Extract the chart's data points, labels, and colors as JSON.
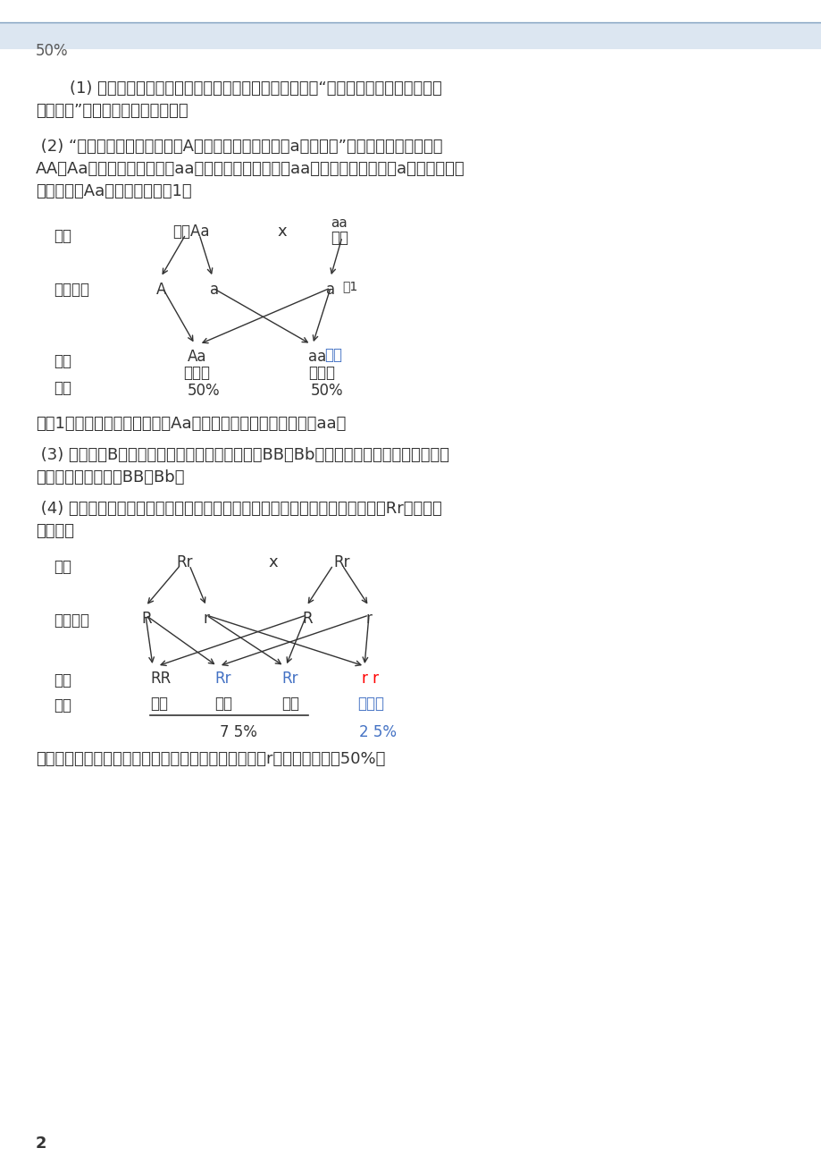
{
  "bg_color": "#ffffff",
  "highlight_color": "#dce6f1",
  "text_color": "#595959",
  "blue_color": "#4472c4",
  "red_color": "#ff0000",
  "page_number": "2",
  "header_text": "50%",
  "p1_l1": "    (1) 生物体的形态特征、生理特征和行为方式叫做性状，“人的眼睛、酒窝、惯用左右",
  "p1_l2": "手、肤色”在生物学上统称为性状。",
  "p2_l1": " (2) “假设控制双眼皮的基因（A）相对于单眼皮基因（a）为显性”，则双眼皮的基因型是",
  "p2_l2": "AA或Aa，单眼皮的基因型是aa。父亲遗传给单眼皮（aa）小明的基因一定是a，因此父亲的",
  "p2_l3": "基因组成为Aa，遗传图解如图1：",
  "p3": "从图1看出，父亲的基因组成是Aa；儿子（小明）的基因组成为aa。",
  "p4_l1": " (3) 显性基因B控制惯用右手的性状，基因组成为BB和Bb的个体表现型为惯用右手，故小",
  "p4_l2": "明父亲的基因组成为BB或Bb。",
  "p5_l1": " (4) 正常亲代生出有白化病的子代，说明亲代均为白化病基因携带者，基因型为Rr，遗传图",
  "p5_l2": "解如下：",
  "p6": "由图可知该夫妇生一个表现正常但含有白化病隐性基因r的孩子的概率是50%。",
  "lbl_qindai": "亲代",
  "lbl_shengzhi": "生殖细胞",
  "lbl_zidai": "子代",
  "lbl_xingzhuang": "性状",
  "lbl_fuqin": "父亲Aa",
  "lbl_muqin": "母亲",
  "lbl_shuangyanpi": "双眼皮",
  "lbl_danyanpi": "单眼皮",
  "lbl_xiaoming": "小明",
  "lbl_tu1": "图1",
  "lbl_zhengchang": "正常",
  "lbl_baihuabing": "白化病"
}
